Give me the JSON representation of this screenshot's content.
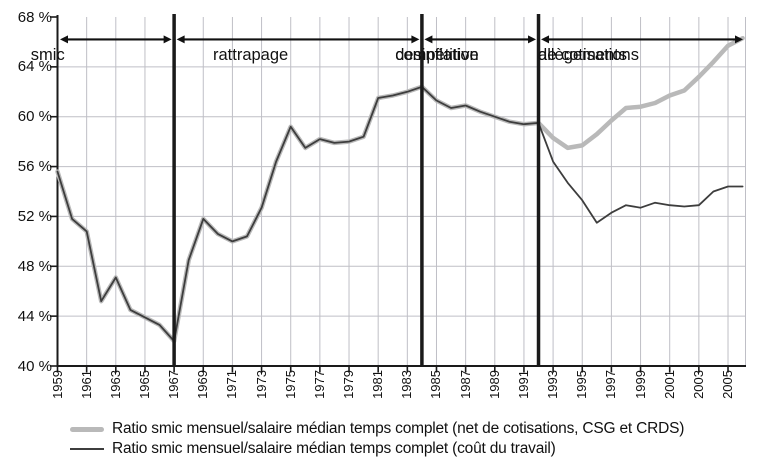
{
  "chart_data": {
    "type": "line",
    "title": "",
    "xlabel": "",
    "ylabel": "",
    "ylim": [
      40,
      68
    ],
    "xlim": [
      1959,
      2006.2
    ],
    "yticks": [
      40,
      44,
      48,
      52,
      56,
      60,
      64,
      68
    ],
    "ytick_suffix": " %",
    "xticks": [
      1959,
      1961,
      1963,
      1965,
      1967,
      1969,
      1971,
      1973,
      1975,
      1977,
      1979,
      1981,
      1983,
      1985,
      1987,
      1989,
      1991,
      1993,
      1995,
      1997,
      1999,
      2001,
      2003,
      2005
    ],
    "grid": true,
    "legend_position": "bottom",
    "x": [
      1959,
      1960,
      1961,
      1962,
      1963,
      1964,
      1965,
      1966,
      1967,
      1968,
      1969,
      1970,
      1971,
      1972,
      1973,
      1974,
      1975,
      1976,
      1977,
      1978,
      1979,
      1980,
      1981,
      1982,
      1983,
      1984,
      1985,
      1986,
      1987,
      1988,
      1989,
      1990,
      1991,
      1992,
      1993,
      1994,
      1995,
      1996,
      1997,
      1998,
      1999,
      2000,
      2001,
      2002,
      2003,
      2004,
      2005,
      2006
    ],
    "series": [
      {
        "id": "net",
        "name": "Ratio smic mensuel/salaire médian temps complet (net de cotisations, CSG et CRDS)",
        "color": "#b9b9b9",
        "stroke_width": 4.5,
        "values": [
          55.6,
          51.8,
          50.8,
          45.2,
          47.1,
          44.5,
          43.9,
          43.3,
          42.0,
          48.5,
          51.8,
          50.6,
          50.0,
          50.4,
          52.7,
          56.4,
          59.2,
          57.5,
          58.2,
          57.9,
          58.0,
          58.4,
          61.5,
          61.7,
          62.0,
          62.4,
          61.3,
          60.7,
          60.9,
          60.4,
          60.0,
          59.6,
          59.4,
          59.5,
          58.3,
          57.5,
          57.7,
          58.6,
          59.7,
          60.7,
          60.8,
          61.1,
          61.7,
          62.1,
          63.2,
          64.4,
          65.7,
          66.3
        ]
      },
      {
        "id": "cout",
        "name": "Ratio smic mensuel/salaire médian temps complet (coût du travail)",
        "color": "#3d3d3d",
        "stroke_width": 1.8,
        "values": [
          55.6,
          51.8,
          50.8,
          45.2,
          47.1,
          44.5,
          43.9,
          43.3,
          42.0,
          48.5,
          51.8,
          50.6,
          50.0,
          50.4,
          52.7,
          56.4,
          59.2,
          57.5,
          58.2,
          57.9,
          58.0,
          58.4,
          61.5,
          61.7,
          62.0,
          62.4,
          61.3,
          60.7,
          60.9,
          60.4,
          60.0,
          59.6,
          59.4,
          59.5,
          56.4,
          54.7,
          53.3,
          51.5,
          52.3,
          52.9,
          52.7,
          53.1,
          52.9,
          52.8,
          52.9,
          54.0,
          54.4,
          54.4
        ]
      }
    ],
    "dividers": [
      1967,
      1984,
      1992
    ],
    "annotation_arrow_y": 66.2,
    "periods": [
      {
        "lines": [
          "smic"
        ],
        "from": 1959,
        "to": 1967,
        "label_center_year": 1963
      },
      {
        "lines": [
          "rattrapage"
        ],
        "from": 1967,
        "to": 1984,
        "label_center_year": 1975.5
      },
      {
        "lines": [
          "desinflation",
          "compétitive"
        ],
        "from": 1984,
        "to": 1992,
        "label_center_year": 1988
      },
      {
        "lines": [
          "allègements",
          "de cotisations"
        ],
        "from": 1992,
        "to": 2006.2,
        "label_center_year": 1997.8
      }
    ]
  },
  "legend": {
    "items": [
      {
        "swatch": "thick-gray-line",
        "label": "Ratio smic mensuel/salaire médian temps complet (net de cotisations, CSG et CRDS)"
      },
      {
        "swatch": "thin-dark-line",
        "label": "Ratio smic mensuel/salaire médian temps complet (coût du travail)"
      }
    ]
  },
  "colors": {
    "background": "#ffffff",
    "grid": "#bfbfc6",
    "axis": "#1a1a1a",
    "divider": "#1a1a1a",
    "arrow": "#111111",
    "text": "#111111",
    "series_net": "#b9b9b9",
    "series_cout": "#3d3d3d"
  }
}
